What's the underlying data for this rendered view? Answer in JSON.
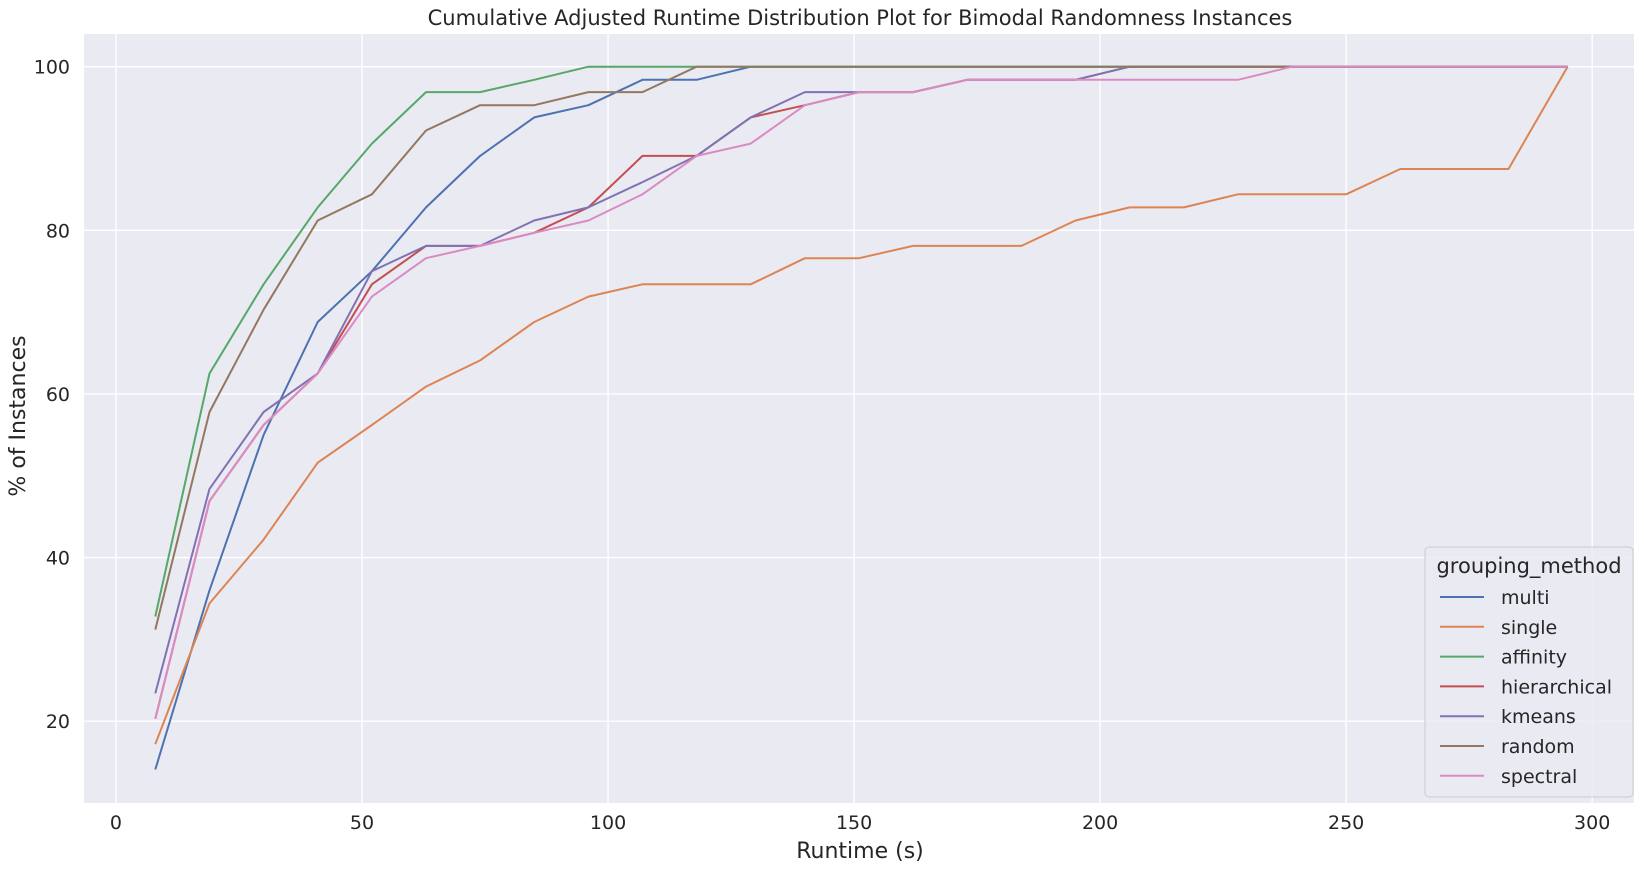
{
  "chart_data": {
    "type": "line",
    "title": "Cumulative Adjusted Runtime Distribution Plot for Bimodal Randomness Instances",
    "xlabel": "Runtime (s)",
    "ylabel": "% of Instances",
    "xlim": [
      -6.5,
      308.5
    ],
    "ylim": [
      10,
      104
    ],
    "xticks": [
      0,
      50,
      100,
      150,
      200,
      250,
      300
    ],
    "yticks": [
      20,
      40,
      60,
      80,
      100
    ],
    "grid": true,
    "background": "#eaeaf2",
    "legend": {
      "title": "grouping_method",
      "position": "lower right"
    },
    "x": [
      8,
      19,
      30,
      41,
      52,
      63,
      74,
      85,
      96,
      107,
      118,
      129,
      140,
      151,
      162,
      173,
      184,
      195,
      206,
      217,
      228,
      239,
      250,
      261,
      272,
      283,
      295
    ],
    "series": [
      {
        "name": "multi",
        "color": "#4c72b0",
        "values": [
          14.1,
          36,
          55,
          68.8,
          75,
          82.8,
          89.1,
          93.8,
          95.3,
          98.4,
          98.4,
          100,
          100,
          100,
          100,
          100,
          100,
          100,
          100,
          100,
          100,
          100,
          100,
          100,
          100,
          100,
          100
        ]
      },
      {
        "name": "single",
        "color": "#dd8452",
        "values": [
          17.2,
          34.4,
          42.2,
          51.6,
          56.2,
          60.9,
          64.1,
          68.8,
          71.9,
          73.4,
          73.4,
          73.4,
          76.6,
          76.6,
          78.1,
          78.1,
          78.1,
          81.2,
          82.8,
          82.8,
          84.4,
          84.4,
          84.4,
          87.5,
          87.5,
          87.5,
          100
        ]
      },
      {
        "name": "affinity",
        "color": "#55a868",
        "values": [
          32.8,
          62.5,
          73.4,
          82.8,
          90.6,
          96.9,
          96.9,
          98.4,
          100,
          100,
          100,
          100,
          100,
          100,
          100,
          100,
          100,
          100,
          100,
          100,
          100,
          100,
          100,
          100,
          100,
          100,
          100
        ]
      },
      {
        "name": "hierarchical",
        "color": "#c44e52",
        "values": [
          20.3,
          46.9,
          56.2,
          62.5,
          73.4,
          78.1,
          78.1,
          79.7,
          82.8,
          89.1,
          89.1,
          93.8,
          95.3,
          96.9,
          96.9,
          98.4,
          98.4,
          98.4,
          100,
          100,
          100,
          100,
          100,
          100,
          100,
          100,
          100
        ]
      },
      {
        "name": "kmeans",
        "color": "#8172b3",
        "values": [
          23.4,
          48.4,
          57.8,
          62.5,
          75,
          78.1,
          78.1,
          81.2,
          82.8,
          85.9,
          89.1,
          93.8,
          96.9,
          96.9,
          96.9,
          98.4,
          98.4,
          98.4,
          100,
          100,
          100,
          100,
          100,
          100,
          100,
          100,
          100
        ]
      },
      {
        "name": "random",
        "color": "#937860",
        "values": [
          31.2,
          57.8,
          70.3,
          81.2,
          84.4,
          92.2,
          95.3,
          95.3,
          96.9,
          96.9,
          100,
          100,
          100,
          100,
          100,
          100,
          100,
          100,
          100,
          100,
          100,
          100,
          100,
          100,
          100,
          100,
          100
        ]
      },
      {
        "name": "spectral",
        "color": "#da8bc3",
        "values": [
          20.3,
          46.9,
          56.2,
          62.5,
          71.9,
          76.6,
          78.1,
          79.7,
          81.2,
          84.4,
          89.1,
          90.6,
          95.3,
          96.9,
          96.9,
          98.4,
          98.4,
          98.4,
          98.4,
          98.4,
          98.4,
          100,
          100,
          100,
          100,
          100,
          100
        ]
      }
    ]
  }
}
